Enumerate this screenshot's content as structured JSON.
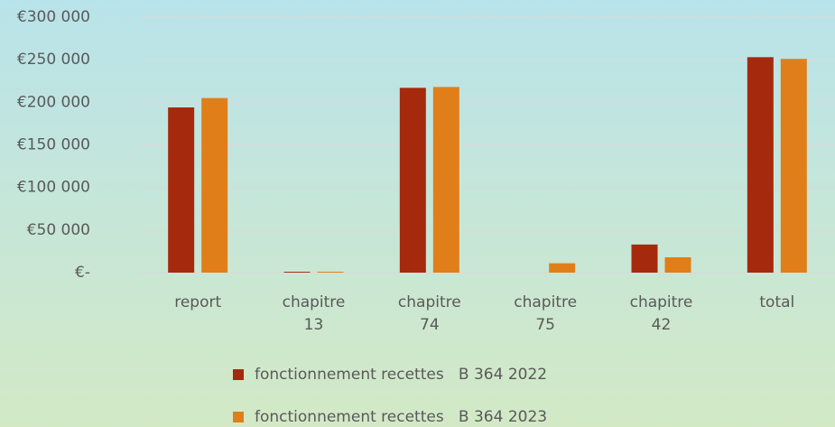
{
  "chart_data": {
    "type": "bar",
    "categories": [
      "report",
      "chapitre 13",
      "chapitre 74",
      "chapitre 75",
      "chapitre 42",
      "total"
    ],
    "series": [
      {
        "name": "fonctionnement recettes   B 364 2022",
        "color": "#a52a0d",
        "values": [
          194000,
          1000,
          217000,
          0,
          33000,
          253000
        ]
      },
      {
        "name": "fonctionnement recettes   B 364 2023",
        "color": "#e07f1a",
        "values": [
          205000,
          1000,
          218000,
          11000,
          18000,
          251000
        ]
      }
    ],
    "ylim": [
      0,
      300000
    ],
    "yticks": [
      {
        "value": 0,
        "label": "€-"
      },
      {
        "value": 50000,
        "label": "€50 000"
      },
      {
        "value": 100000,
        "label": "€100 000"
      },
      {
        "value": 150000,
        "label": "€150 000"
      },
      {
        "value": 200000,
        "label": "€200 000"
      },
      {
        "value": 250000,
        "label": "€250 000"
      },
      {
        "value": 300000,
        "label": "€300 000"
      }
    ],
    "grid": true,
    "legend": "bottom"
  }
}
